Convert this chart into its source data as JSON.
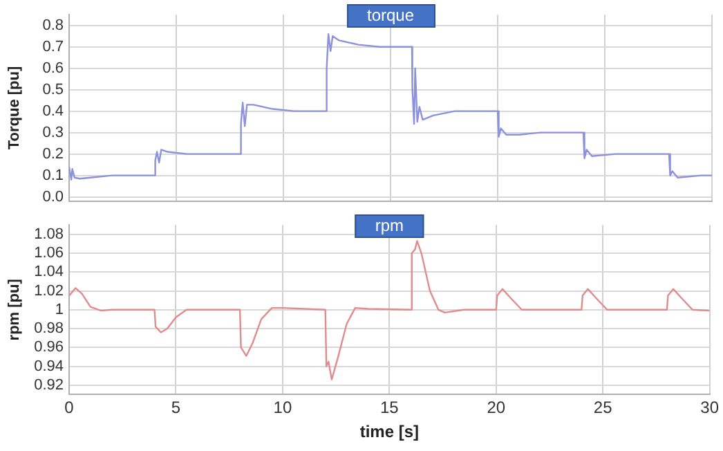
{
  "chart_data": [
    {
      "type": "line",
      "title": "torque",
      "ylabel": "Torque [pu]",
      "color": "#8c91dc",
      "marker": "none",
      "line_style": "solid",
      "grid": true,
      "legend": false,
      "tick_labels": "y",
      "xlim": [
        0,
        30
      ],
      "xticks": [
        0,
        5,
        10,
        15,
        20,
        25,
        30
      ],
      "ylim": [
        -0.02,
        0.85
      ],
      "yticks": [
        {
          "value": 0,
          "label": "0.0"
        },
        0.1,
        0.2,
        0.3,
        0.4,
        0.5,
        0.6,
        0.7,
        0.8
      ],
      "x": [
        0,
        0.1,
        0.15,
        0.25,
        0.5,
        1,
        2,
        4,
        4.02,
        4.1,
        4.2,
        4.3,
        4.6,
        5.5,
        8,
        8.02,
        8.1,
        8.2,
        8.3,
        8.6,
        9.5,
        10.5,
        12,
        12.02,
        12.1,
        12.2,
        12.3,
        12.6,
        13.5,
        14.5,
        16,
        16.02,
        16.1,
        16.15,
        16.25,
        16.35,
        16.5,
        17,
        18,
        20,
        20.05,
        20.15,
        20.4,
        21,
        22,
        24,
        24.05,
        24.15,
        24.4,
        25.5,
        28,
        28.05,
        28.15,
        28.4,
        29.5,
        30
      ],
      "values": [
        0.14,
        0.08,
        0.13,
        0.09,
        0.085,
        0.09,
        0.1,
        0.1,
        0.17,
        0.21,
        0.16,
        0.22,
        0.21,
        0.2,
        0.2,
        0.34,
        0.44,
        0.33,
        0.43,
        0.43,
        0.41,
        0.4,
        0.4,
        0.6,
        0.76,
        0.68,
        0.75,
        0.73,
        0.71,
        0.7,
        0.7,
        0.5,
        0.34,
        0.6,
        0.35,
        0.42,
        0.36,
        0.38,
        0.4,
        0.4,
        0.28,
        0.32,
        0.29,
        0.29,
        0.3,
        0.3,
        0.18,
        0.22,
        0.19,
        0.2,
        0.2,
        0.1,
        0.12,
        0.09,
        0.1,
        0.1
      ]
    },
    {
      "type": "line",
      "title": "rpm",
      "xlabel": "time [s]",
      "ylabel": "rpm [pu]",
      "color": "#e08c8c",
      "marker": "none",
      "line_style": "solid",
      "grid": true,
      "legend": false,
      "xlim": [
        0,
        30
      ],
      "xticks": [
        0,
        5,
        10,
        15,
        20,
        25,
        30
      ],
      "ylim": [
        0.91,
        1.09
      ],
      "yticks": [
        0.92,
        0.94,
        0.96,
        0.98,
        1,
        1.02,
        1.04,
        1.06,
        1.08
      ],
      "x": [
        0,
        0.3,
        0.6,
        1,
        1.5,
        2,
        4,
        4.05,
        4.3,
        4.6,
        5,
        5.5,
        8,
        8.05,
        8.3,
        8.6,
        9,
        9.5,
        10,
        12,
        12.05,
        12.15,
        12.3,
        12.6,
        13,
        13.4,
        14,
        16,
        16.05,
        16.2,
        16.3,
        16.5,
        16.9,
        17.3,
        17.6,
        18.5,
        20,
        20.05,
        20.3,
        20.7,
        21.2,
        24,
        24.05,
        24.3,
        24.7,
        25.2,
        28,
        28.05,
        28.3,
        28.7,
        29.2,
        30
      ],
      "values": [
        1.015,
        1.023,
        1.017,
        1.003,
        0.999,
        1,
        1,
        0.982,
        0.976,
        0.98,
        0.992,
        1,
        1,
        0.96,
        0.951,
        0.965,
        0.99,
        1.002,
        1.002,
        1,
        0.94,
        0.945,
        0.926,
        0.95,
        0.985,
        1.002,
        1.001,
        1,
        1.06,
        1.064,
        1.073,
        1.06,
        1.02,
        1,
        0.997,
        1,
        1,
        1.015,
        1.022,
        1.012,
        1,
        1,
        1.015,
        1.022,
        1.012,
        1,
        1,
        1.015,
        1.022,
        1.012,
        1,
        0.999
      ]
    }
  ]
}
